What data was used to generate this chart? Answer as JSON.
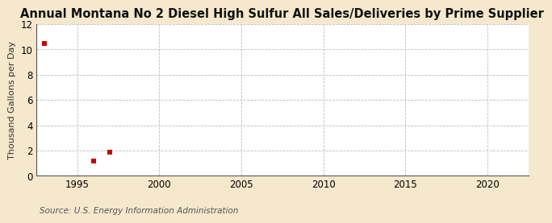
{
  "title": "Annual Montana No 2 Diesel High Sulfur All Sales/Deliveries by Prime Supplier",
  "ylabel": "Thousand Gallons per Day",
  "source": "Source: U.S. Energy Information Administration",
  "data_x": [
    1993,
    1996,
    1997
  ],
  "data_y": [
    10.5,
    1.2,
    1.9
  ],
  "marker_color": "#cc0000",
  "marker_size": 4,
  "xlim": [
    1992.5,
    2022.5
  ],
  "ylim": [
    0,
    12
  ],
  "yticks": [
    0,
    2,
    4,
    6,
    8,
    10,
    12
  ],
  "xticks": [
    1995,
    2000,
    2005,
    2010,
    2015,
    2020
  ],
  "figure_bg": "#f5e8cc",
  "plot_bg": "#ffffff",
  "grid_color": "#bbbbbb",
  "title_fontsize": 10.5,
  "label_fontsize": 8,
  "tick_fontsize": 8.5,
  "source_fontsize": 7.5,
  "spine_color": "#555555"
}
